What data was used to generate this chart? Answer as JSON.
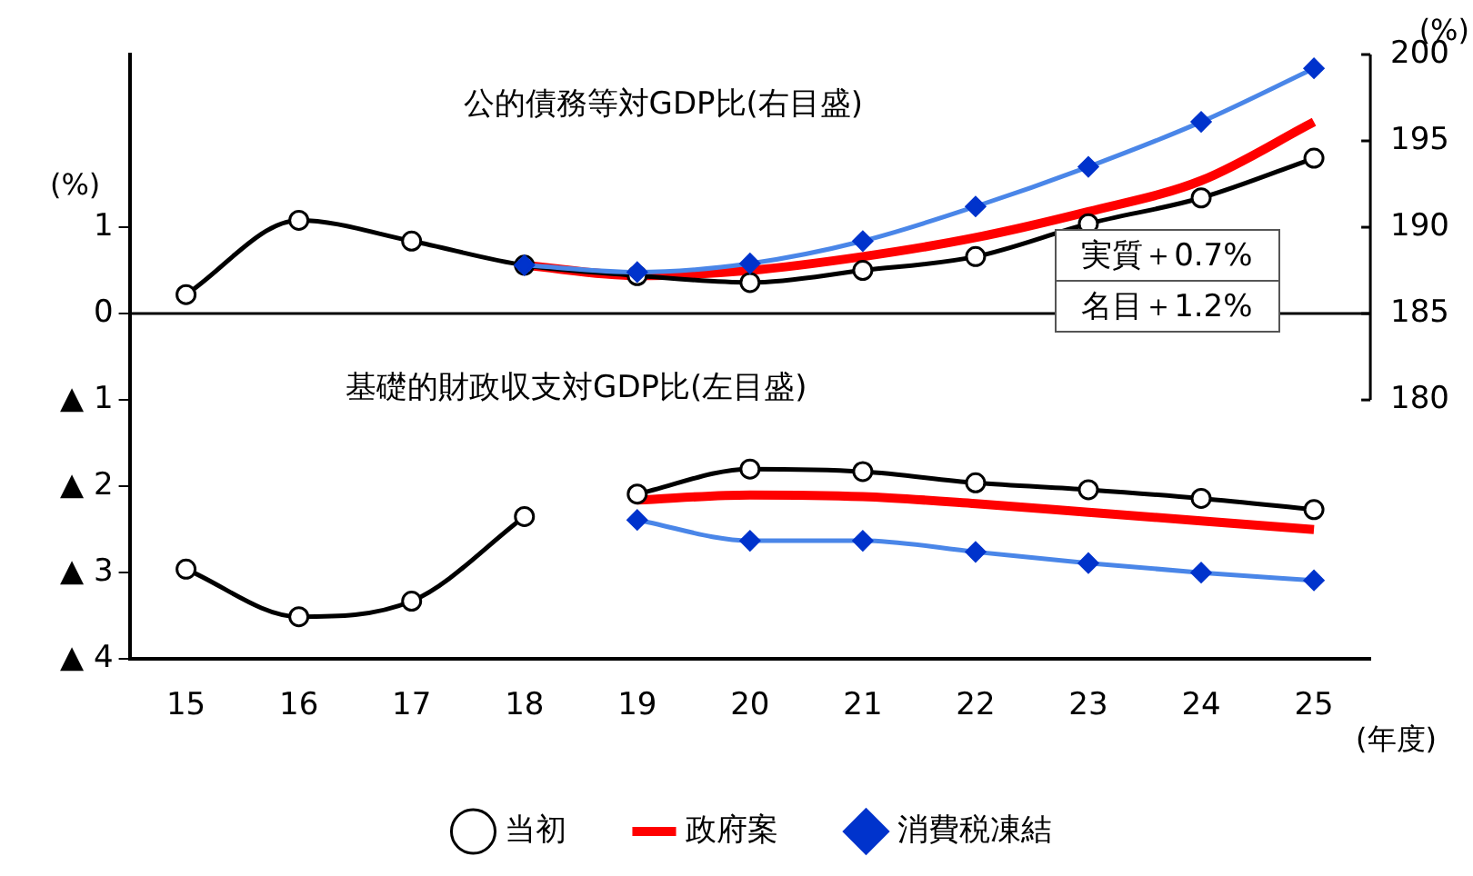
{
  "chart_data": {
    "type": "line",
    "categories": [
      "15",
      "16",
      "17",
      "18",
      "19",
      "20",
      "21",
      "22",
      "23",
      "24",
      "25"
    ],
    "series": [
      {
        "name": "当初",
        "color": "#000000",
        "marker": "circle",
        "axis": "y2",
        "values": [
          186.1,
          190.4,
          189.2,
          187.8,
          187.2,
          186.8,
          187.5,
          188.3,
          190.2,
          191.7,
          194.0
        ]
      },
      {
        "name": "政府案",
        "color": "#ff0000",
        "marker": "none",
        "axis": "y2",
        "values": [
          null,
          null,
          null,
          187.8,
          187.2,
          187.5,
          188.3,
          189.4,
          190.9,
          192.7,
          196.1
        ]
      },
      {
        "name": "消費税凍結",
        "color": "#4a86e8",
        "marker": "diamond",
        "axis": "y2",
        "values": [
          null,
          null,
          null,
          187.8,
          187.4,
          187.9,
          189.2,
          191.2,
          193.5,
          196.1,
          199.2
        ]
      },
      {
        "color": "#000000",
        "marker": "circle",
        "values": [
          -2.96,
          -3.51,
          -3.33,
          -2.35,
          null,
          null,
          null,
          null,
          null,
          null,
          null
        ]
      },
      {
        "color": "#000000",
        "marker": "circle",
        "values": [
          null,
          null,
          null,
          null,
          -2.09,
          -1.8,
          -1.83,
          -1.96,
          -2.04,
          -2.14,
          -2.27
        ]
      },
      {
        "color": "#ff0000",
        "marker": "none",
        "values": [
          null,
          null,
          null,
          null,
          -2.16,
          -2.1,
          -2.12,
          -2.2,
          -2.3,
          -2.4,
          -2.5
        ]
      },
      {
        "color": "#4a86e8",
        "marker": "diamond",
        "values": [
          null,
          null,
          null,
          null,
          -2.39,
          -2.63,
          -2.63,
          -2.76,
          -2.89,
          -3.0,
          -3.09
        ]
      }
    ],
    "ylim": [
      -4,
      3
    ],
    "yticks": [
      {
        "value": -4,
        "label": "▲ 4"
      },
      {
        "value": -3,
        "label": "▲ 3"
      },
      {
        "value": -2,
        "label": "▲ 2"
      },
      {
        "value": -1,
        "label": "▲ 1"
      },
      0,
      1
    ],
    "y2lim": [
      165,
      200
    ],
    "y2ticks": [
      180,
      185,
      190,
      195,
      200
    ],
    "ylabel": "(%)",
    "y2label": "(%)",
    "xlabel": "(年度)",
    "ref_lines": [
      {
        "axis": "y",
        "value": 0,
        "color": "#000000"
      }
    ],
    "annotations": [
      "公的債務等対GDP比(右目盛)",
      "基礎的財政収支対GDP比(左目盛)",
      "実質＋0.7%",
      "名目＋1.2%"
    ],
    "grid": false,
    "legend": "bottom"
  }
}
